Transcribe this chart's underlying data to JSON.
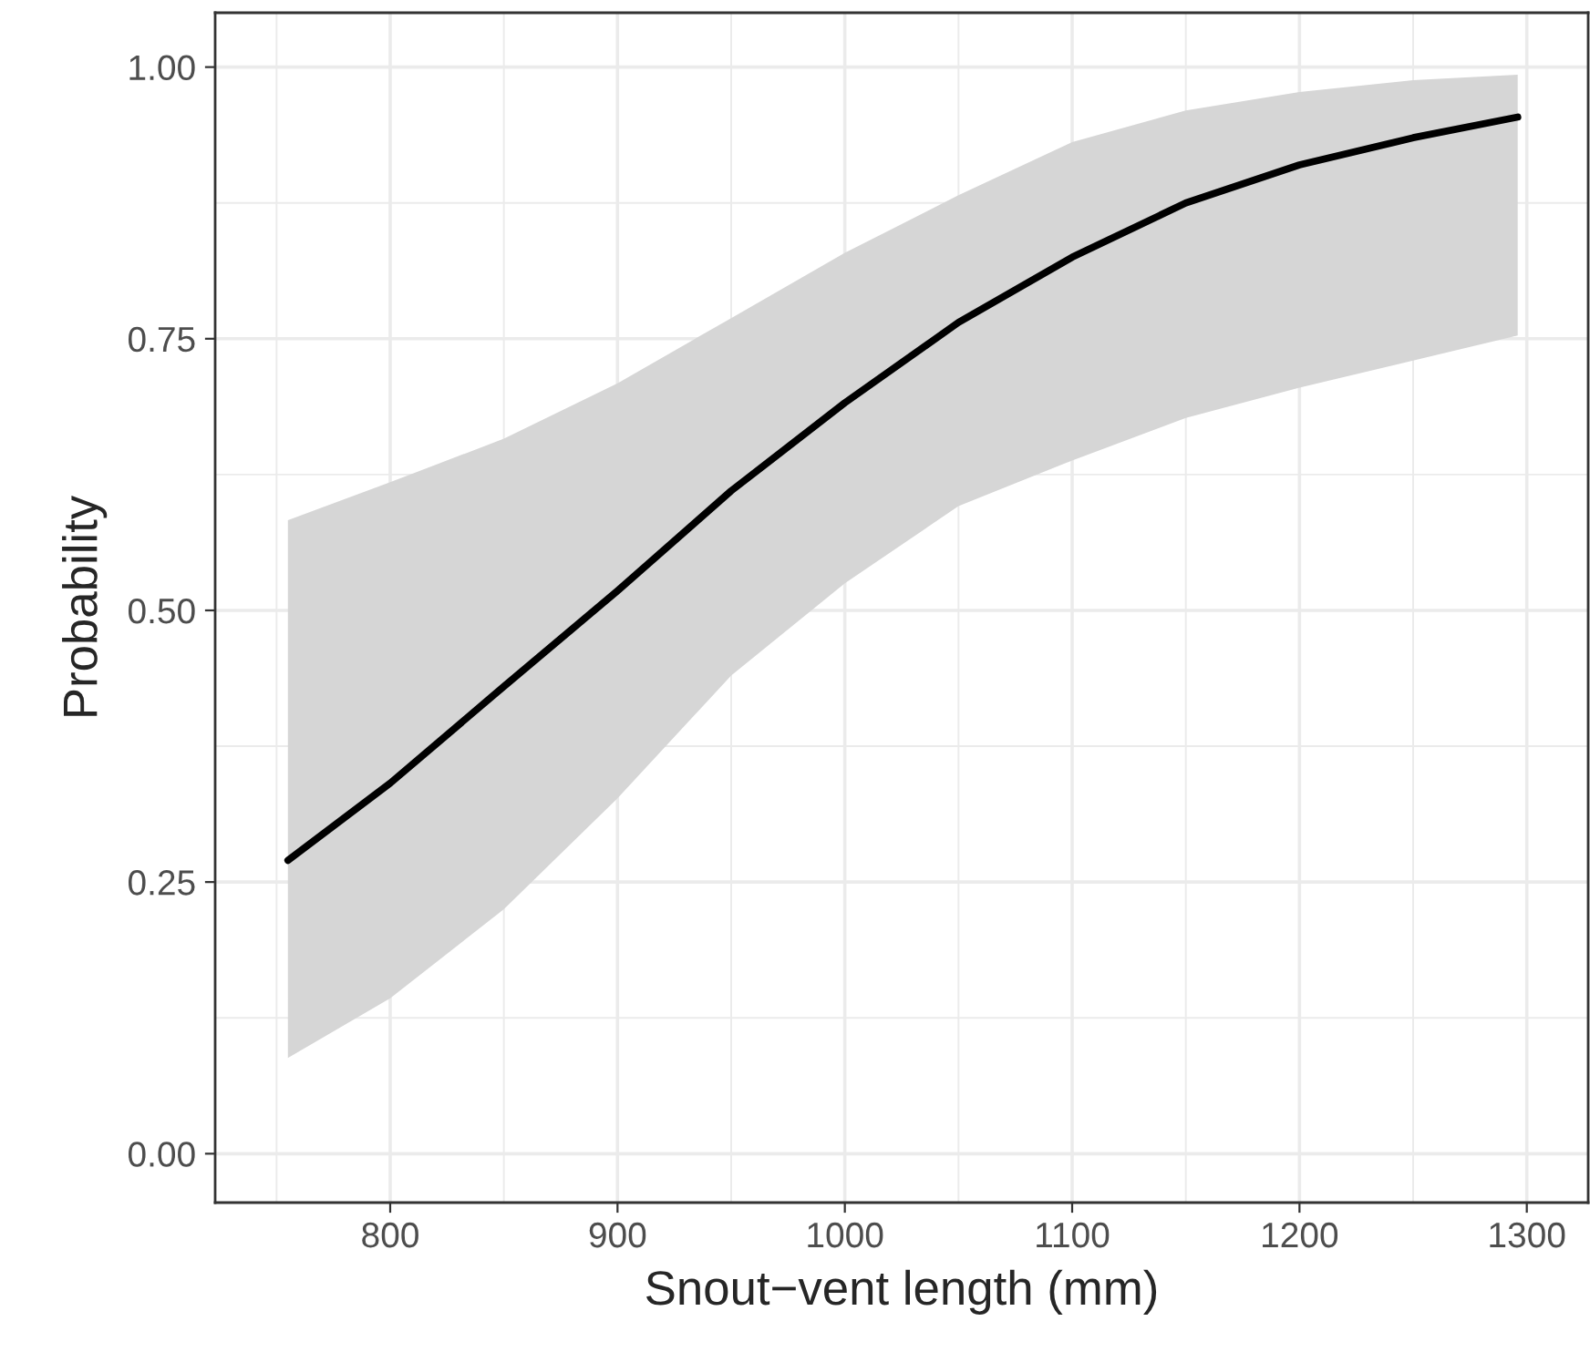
{
  "chart_data": {
    "type": "line",
    "xlabel": "Snout−vent length (mm)",
    "ylabel": "Probability",
    "xlim": [
      723,
      1327
    ],
    "ylim": [
      -0.045,
      1.05
    ],
    "xticks": [
      800,
      900,
      1000,
      1100,
      1200,
      1300
    ],
    "yticks": [
      {
        "value": 0,
        "label": "0.00"
      },
      {
        "value": 0.25,
        "label": "0.25"
      },
      {
        "value": 0.5,
        "label": "0.50"
      },
      {
        "value": 0.75,
        "label": "0.75"
      },
      {
        "value": 1,
        "label": "1.00"
      }
    ],
    "grid": true,
    "marker": "none",
    "line_style": "solid",
    "series": [
      {
        "color": "#000000",
        "x": [
          755,
          800,
          850,
          900,
          950,
          1000,
          1050,
          1100,
          1150,
          1200,
          1250,
          1296
        ],
        "values": [
          0.27,
          0.341,
          0.43,
          0.518,
          0.61,
          0.691,
          0.765,
          0.825,
          0.875,
          0.91,
          0.935,
          0.954
        ],
        "lower": [
          0.088,
          0.143,
          0.225,
          0.327,
          0.44,
          0.525,
          0.596,
          0.638,
          0.677,
          0.705,
          0.73,
          0.753
        ],
        "upper": [
          0.583,
          0.618,
          0.658,
          0.709,
          0.769,
          0.829,
          0.882,
          0.931,
          0.96,
          0.977,
          0.988,
          0.993
        ]
      }
    ]
  }
}
